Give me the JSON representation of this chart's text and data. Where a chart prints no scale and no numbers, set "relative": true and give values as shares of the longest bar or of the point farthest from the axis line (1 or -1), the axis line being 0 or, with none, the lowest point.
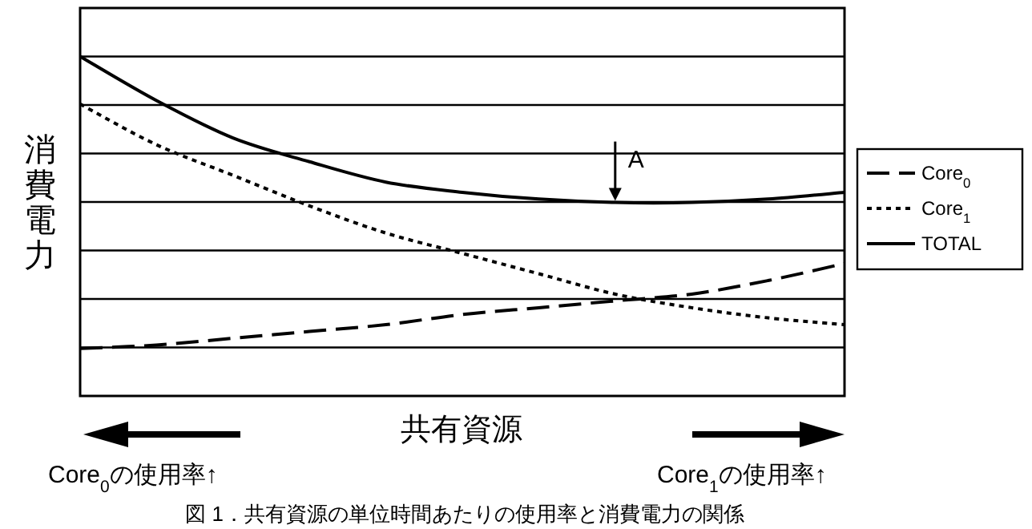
{
  "chart_data": {
    "type": "line",
    "relative": true,
    "ylabel": "消費電力",
    "xlabel": "共有資源",
    "grid": "y",
    "legend": "right",
    "categories": [
      null,
      null,
      null,
      null,
      null,
      null,
      null,
      null,
      null,
      null,
      null
    ],
    "series": [
      {
        "name": "Core$_{0}$",
        "color": "#000000",
        "line_style": "dashed",
        "values": [
          0.14,
          0.15,
          0.17,
          0.19,
          0.21,
          0.24,
          0.26,
          0.28,
          0.3,
          0.34,
          0.39
        ]
      },
      {
        "name": "Core$_{1}$",
        "color": "#000000",
        "line_style": "dotted",
        "values": [
          0.86,
          0.74,
          0.65,
          0.56,
          0.48,
          0.42,
          0.36,
          0.3,
          0.26,
          0.23,
          0.21
        ]
      },
      {
        "name": "TOTAL",
        "color": "#000000",
        "line_style": "solid",
        "values": [
          1,
          0.87,
          0.76,
          0.69,
          0.63,
          0.6,
          0.58,
          0.57,
          0.57,
          0.58,
          0.6
        ]
      }
    ],
    "annotations": [
      {
        "text": "A",
        "y": 0.57
      },
      "Core$_{0}$の使用率↑",
      "Core$_{1}$の使用率↑",
      "図 1．共有資源の単位時間あたりの使用率と消費電力の関係"
    ]
  }
}
